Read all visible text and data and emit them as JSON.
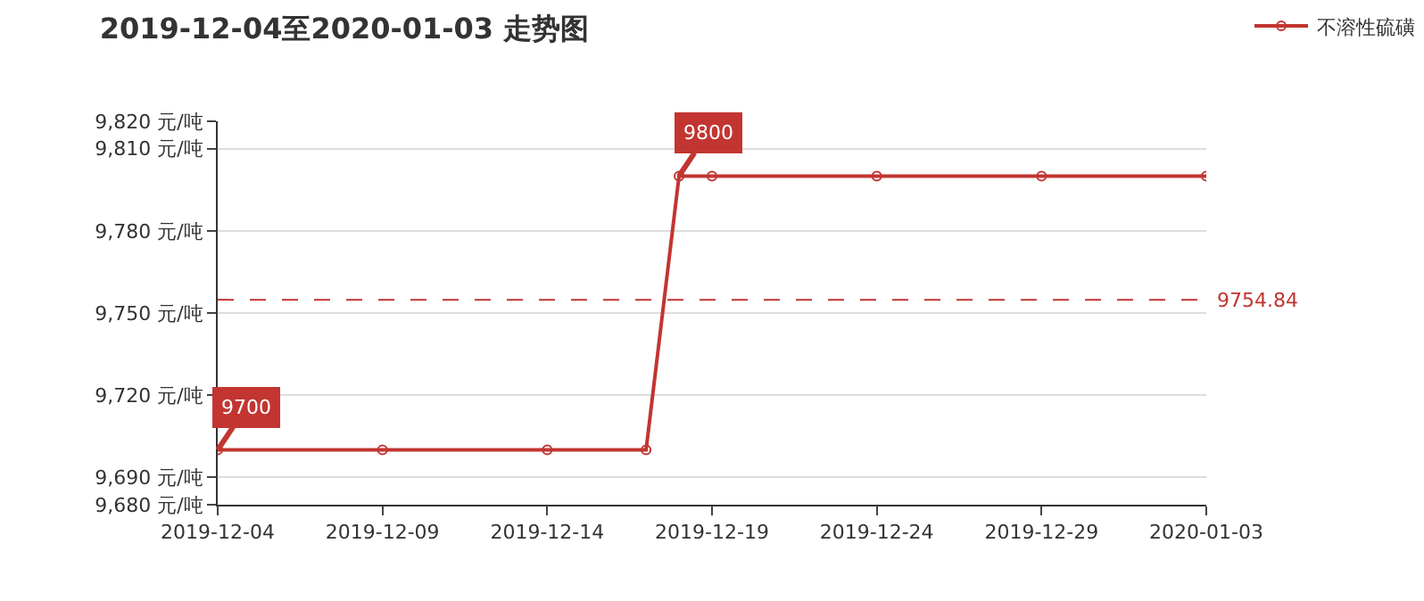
{
  "chart_data": {
    "type": "line",
    "title": "2019-12-04至2020-01-03 走势图",
    "x": [
      "2019-12-04",
      "2019-12-09",
      "2019-12-14",
      "2019-12-17",
      "2019-12-18",
      "2019-12-19",
      "2019-12-24",
      "2019-12-29",
      "2020-01-03"
    ],
    "series": [
      {
        "name": "不溶性硫磺",
        "color": "#c23531",
        "values": [
          9700,
          9700,
          9700,
          9700,
          9800,
          9800,
          9800,
          9800,
          9800
        ]
      }
    ],
    "xlim": [
      "2019-12-04",
      "2020-01-03"
    ],
    "xticks": [
      "2019-12-04",
      "2019-12-09",
      "2019-12-14",
      "2019-12-19",
      "2019-12-24",
      "2019-12-29",
      "2020-01-03"
    ],
    "ylim": [
      9680,
      9820
    ],
    "yticks": [
      {
        "value": 9680,
        "label": "9,680 元/吨"
      },
      {
        "value": 9690,
        "label": "9,690 元/吨"
      },
      {
        "value": 9720,
        "label": "9,720 元/吨"
      },
      {
        "value": 9750,
        "label": "9,750 元/吨"
      },
      {
        "value": 9780,
        "label": "9,780 元/吨"
      },
      {
        "value": 9810,
        "label": "9,810 元/吨"
      },
      {
        "value": 9820,
        "label": "9,820 元/吨"
      }
    ],
    "annotations": [
      {
        "text": "9700",
        "x": "2019-12-04",
        "y": 9700
      },
      {
        "text": "9800",
        "x": "2019-12-18",
        "y": 9800
      }
    ],
    "ref_lines": [
      {
        "axis": "y",
        "value": 9754.84,
        "label": "9754.84",
        "color": "#c23531",
        "line_style": "dashed"
      }
    ],
    "grid": "y",
    "legend": "top right",
    "marker": "circle",
    "line_style": "solid"
  }
}
